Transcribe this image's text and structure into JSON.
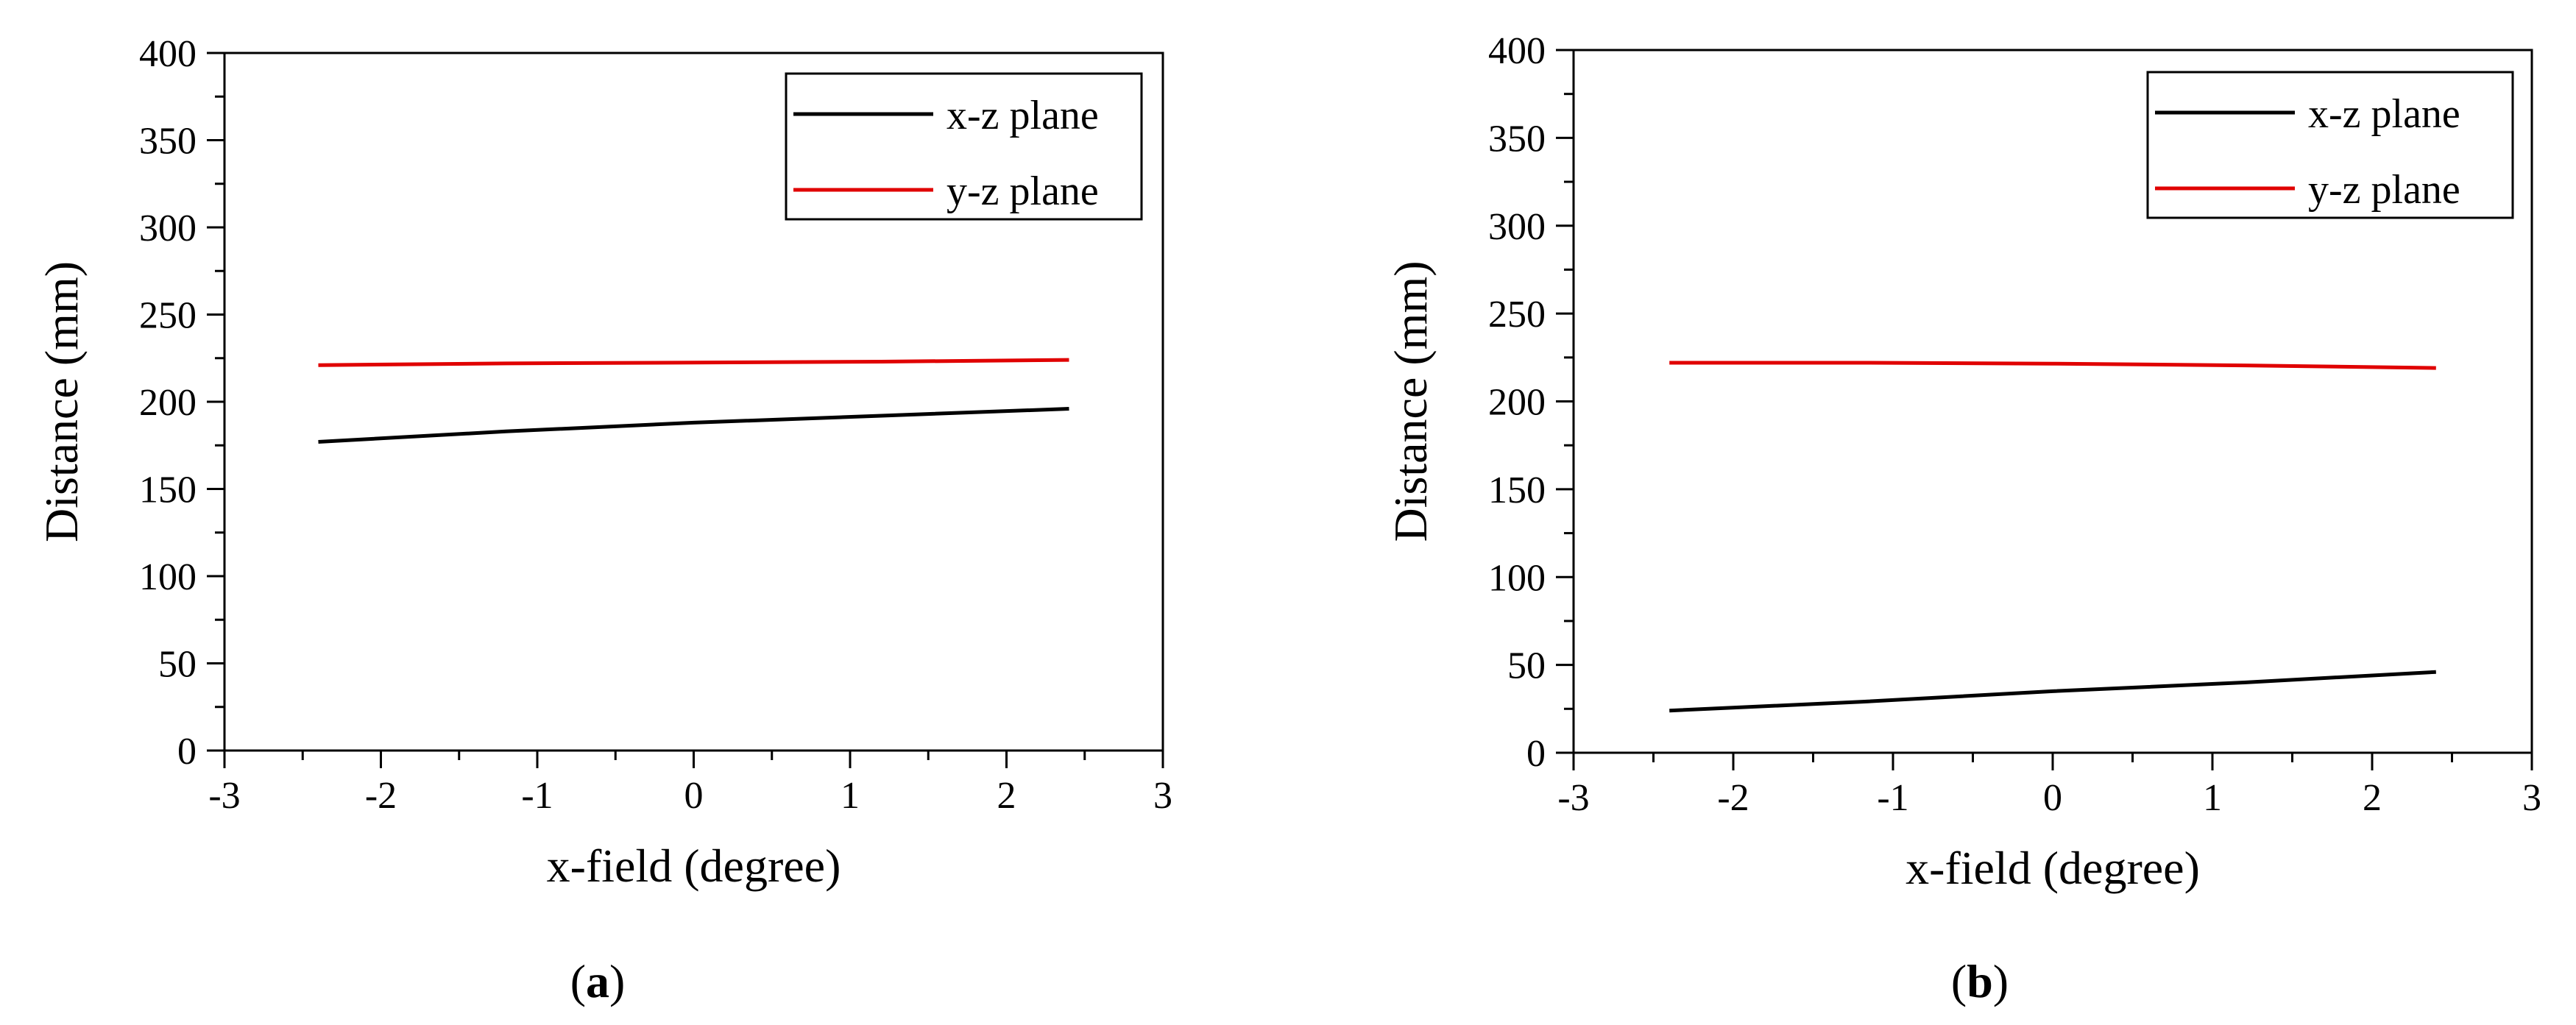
{
  "chart_data": [
    {
      "type": "line",
      "panel_label": "(a)",
      "xlabel": "x-field (degree)",
      "ylabel": "Distance (mm)",
      "xlim": [
        -3,
        3
      ],
      "ylim": [
        0,
        400
      ],
      "xticks": [
        -3,
        -2,
        -1,
        0,
        1,
        2,
        3
      ],
      "yticks": [
        0,
        50,
        100,
        150,
        200,
        250,
        300,
        350,
        400
      ],
      "grid": false,
      "legend_position": "top-right",
      "series": [
        {
          "name": "x-z plane",
          "color": "#000000",
          "x": [
            -2.4,
            -1.2,
            0,
            1.2,
            2.4
          ],
          "y": [
            177,
            183,
            188,
            192,
            196
          ]
        },
        {
          "name": "y-z plane",
          "color": "#e00000",
          "x": [
            -2.4,
            -1.2,
            0,
            1.2,
            2.4
          ],
          "y": [
            221,
            222,
            222.5,
            223,
            224
          ]
        }
      ]
    },
    {
      "type": "line",
      "panel_label": "(b)",
      "xlabel": "x-field (degree)",
      "ylabel": "Distance (mm)",
      "xlim": [
        -3,
        3
      ],
      "ylim": [
        0,
        400
      ],
      "xticks": [
        -3,
        -2,
        -1,
        0,
        1,
        2,
        3
      ],
      "yticks": [
        0,
        50,
        100,
        150,
        200,
        250,
        300,
        350,
        400
      ],
      "grid": false,
      "legend_position": "top-right",
      "series": [
        {
          "name": "x-z plane",
          "color": "#000000",
          "x": [
            -2.4,
            -1.2,
            0,
            1.2,
            2.4
          ],
          "y": [
            24,
            29,
            35,
            40,
            46
          ]
        },
        {
          "name": "y-z plane",
          "color": "#e00000",
          "x": [
            -2.4,
            -1.2,
            0,
            1.2,
            2.4
          ],
          "y": [
            222,
            222,
            221.5,
            220.5,
            219
          ]
        }
      ]
    }
  ]
}
